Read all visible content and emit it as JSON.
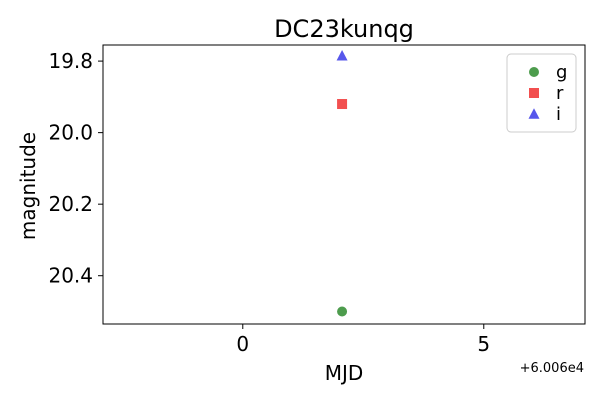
{
  "chart_data": {
    "type": "scatter",
    "title": "DC23kunqg",
    "xlabel": "MJD",
    "ylabel": "magnitude",
    "x_offset_label": "+6.006e4",
    "xlim": [
      -2.9,
      7.1
    ],
    "ylim": [
      20.535,
      19.755
    ],
    "y_inverted": true,
    "grid": false,
    "legend_position": "top-right",
    "x_ticks": [
      {
        "value": 0,
        "label": "0"
      },
      {
        "value": 5,
        "label": "5"
      }
    ],
    "y_ticks": [
      {
        "value": 19.8,
        "label": "19.8"
      },
      {
        "value": 20.0,
        "label": "20.0"
      },
      {
        "value": 20.2,
        "label": "20.2"
      },
      {
        "value": 20.4,
        "label": "20.4"
      }
    ],
    "series": [
      {
        "name": "g",
        "marker": "circle",
        "color": "#2e8b2e",
        "points": [
          {
            "x": 2.06,
            "y": 20.5
          }
        ]
      },
      {
        "name": "r",
        "marker": "square",
        "color": "#f03030",
        "points": [
          {
            "x": 2.06,
            "y": 19.92
          }
        ]
      },
      {
        "name": "i",
        "marker": "triangle",
        "color": "#3a3ae8",
        "points": [
          {
            "x": 2.06,
            "y": 19.785
          }
        ]
      }
    ]
  }
}
